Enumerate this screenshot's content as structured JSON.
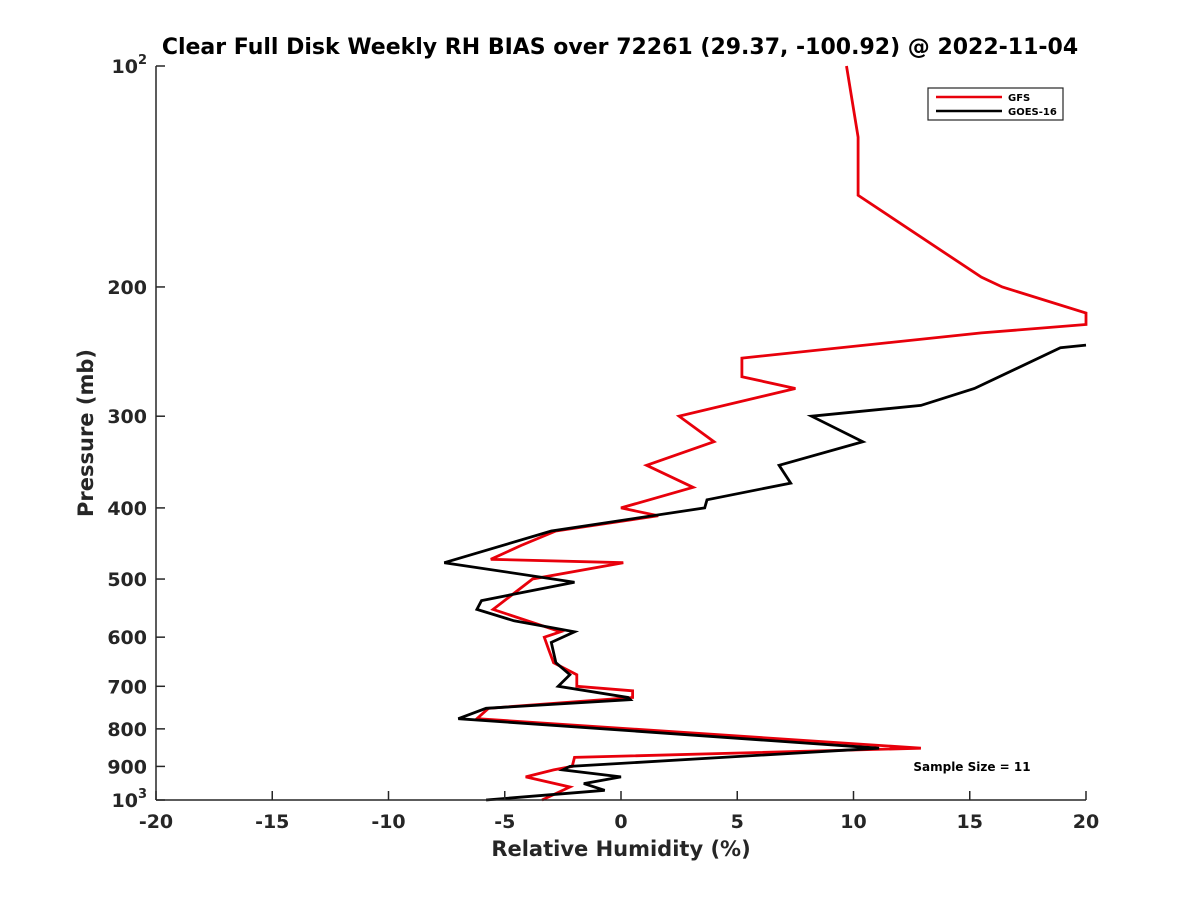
{
  "chart_data": {
    "type": "line",
    "title": "Clear Full Disk Weekly RH BIAS over 72261 (29.37, -100.92) @ 2022-11-04",
    "xlabel": "Relative Humidity (%)",
    "ylabel": "Pressure (mb)",
    "xlim": [
      -20,
      20
    ],
    "ylim": [
      100,
      1000
    ],
    "y_scale": "log",
    "y_reversed": true,
    "x_ticks": [
      "-20",
      "-15",
      "-10",
      "-5",
      "0",
      "5",
      "10",
      "15",
      "20"
    ],
    "y_ticks": [
      {
        "value": 100,
        "base": "10",
        "exp": "2"
      },
      {
        "value": 200,
        "label": "200"
      },
      {
        "value": 300,
        "label": "300"
      },
      {
        "value": 400,
        "label": "400"
      },
      {
        "value": 500,
        "label": "500"
      },
      {
        "value": 600,
        "label": "600"
      },
      {
        "value": 700,
        "label": "700"
      },
      {
        "value": 800,
        "label": "800"
      },
      {
        "value": 900,
        "label": "900"
      },
      {
        "value": 1000,
        "base": "10",
        "exp": "3"
      }
    ],
    "legend_position": "top-right",
    "annotation": "Sample Size = 11",
    "series": [
      {
        "name": "GFS",
        "color": "#e8000b",
        "points": [
          [
            9.7,
            100
          ],
          [
            10.2,
            125
          ],
          [
            10.2,
            150
          ],
          [
            15.5,
            194
          ],
          [
            16.4,
            200
          ],
          [
            20.0,
            217
          ],
          [
            20.0,
            225
          ],
          [
            15.5,
            231
          ],
          [
            5.2,
            250
          ],
          [
            5.2,
            265
          ],
          [
            7.5,
            275
          ],
          [
            2.5,
            300
          ],
          [
            4.0,
            325
          ],
          [
            1.1,
            350
          ],
          [
            3.1,
            375
          ],
          [
            0.0,
            400
          ],
          [
            1.6,
            410
          ],
          [
            -2.8,
            430
          ],
          [
            -4.3,
            450
          ],
          [
            -5.6,
            470
          ],
          [
            0.1,
            475
          ],
          [
            -3.8,
            500
          ],
          [
            -5.5,
            550
          ],
          [
            -2.6,
            590
          ],
          [
            -3.3,
            600
          ],
          [
            -3.1,
            625
          ],
          [
            -2.9,
            650
          ],
          [
            -1.9,
            675
          ],
          [
            -1.9,
            700
          ],
          [
            0.5,
            710
          ],
          [
            0.5,
            725
          ],
          [
            -5.7,
            750
          ],
          [
            -6.2,
            775
          ],
          [
            12.9,
            850
          ],
          [
            -2.0,
            875
          ],
          [
            -2.1,
            900
          ],
          [
            -2.9,
            910
          ],
          [
            -4.1,
            930
          ],
          [
            -2.2,
            960
          ],
          [
            -3.4,
            1000
          ]
        ]
      },
      {
        "name": "GOES-16",
        "color": "#000000",
        "points": [
          [
            20.0,
            240
          ],
          [
            18.9,
            242
          ],
          [
            15.2,
            275
          ],
          [
            12.9,
            290
          ],
          [
            8.2,
            300
          ],
          [
            10.4,
            325
          ],
          [
            6.8,
            350
          ],
          [
            7.3,
            370
          ],
          [
            3.7,
            390
          ],
          [
            3.6,
            400
          ],
          [
            -3.0,
            430
          ],
          [
            -7.6,
            475
          ],
          [
            -2.0,
            505
          ],
          [
            -6.0,
            535
          ],
          [
            -6.2,
            550
          ],
          [
            -4.6,
            570
          ],
          [
            -2.0,
            590
          ],
          [
            -3.0,
            610
          ],
          [
            -2.8,
            650
          ],
          [
            -2.2,
            675
          ],
          [
            -2.7,
            700
          ],
          [
            0.3,
            725
          ],
          [
            0.4,
            730
          ],
          [
            -5.8,
            750
          ],
          [
            -7.0,
            775
          ],
          [
            11.1,
            850
          ],
          [
            -2.2,
            900
          ],
          [
            -2.5,
            910
          ],
          [
            0.0,
            930
          ],
          [
            -1.6,
            950
          ],
          [
            -0.7,
            970
          ],
          [
            -5.8,
            1000
          ]
        ]
      }
    ]
  }
}
